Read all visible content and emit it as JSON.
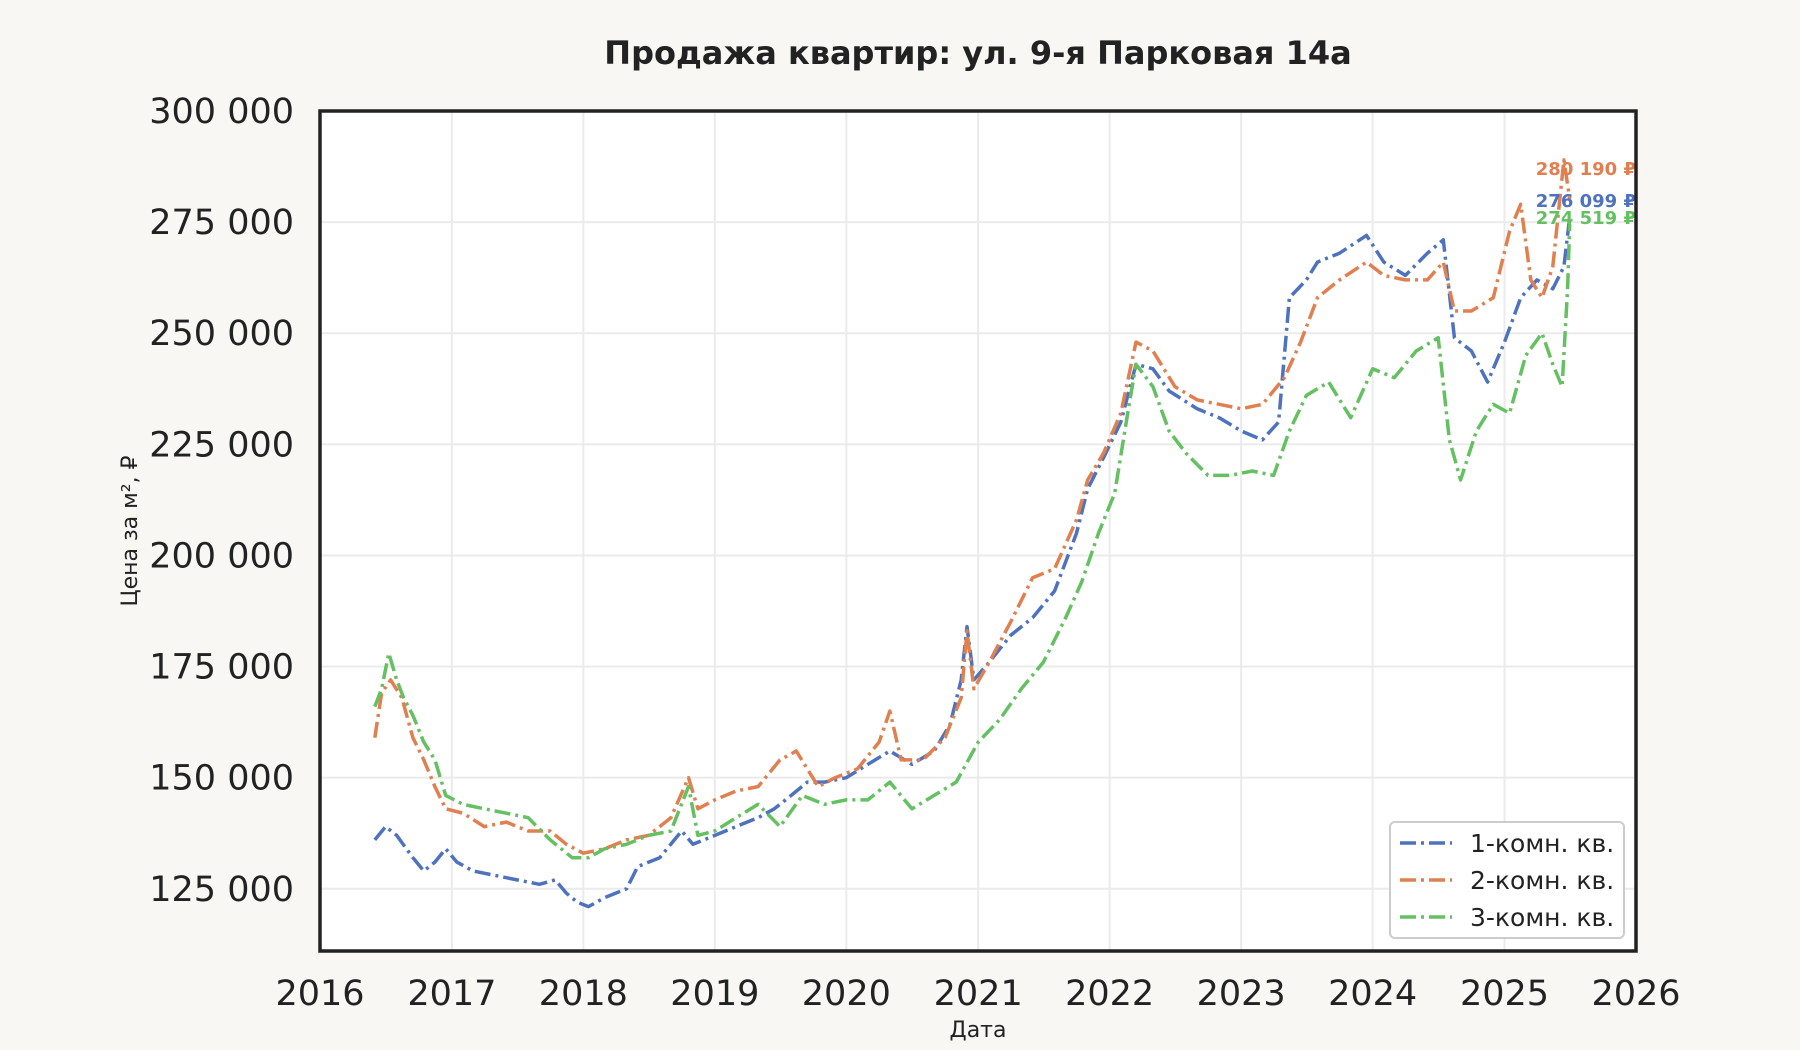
{
  "chart_data": {
    "type": "line",
    "title": "Продажа квартир: ул. 9-я Парковая 14а",
    "xlabel": "Дата",
    "ylabel": "Цена за м², ₽",
    "xlim": [
      "2016-01-01",
      "2026-01-01"
    ],
    "ylim": [
      111000,
      300000
    ],
    "x_ticks": [
      "2016",
      "2017",
      "2018",
      "2019",
      "2020",
      "2021",
      "2022",
      "2023",
      "2024",
      "2025",
      "2026"
    ],
    "y_ticks": [
      125000,
      150000,
      175000,
      200000,
      225000,
      250000,
      275000,
      300000
    ],
    "y_tick_labels": [
      "125 000",
      "150 000",
      "175 000",
      "200 000",
      "225 000",
      "250 000",
      "275 000",
      "300 000"
    ],
    "grid": true,
    "legend_position": "bottom-right",
    "series": [
      {
        "name": "1-комн. кв.",
        "color": "#4f72be",
        "end_label": "276 099 ₽",
        "points": [
          [
            "2016-06-01",
            136000
          ],
          [
            "2016-07-01",
            139000
          ],
          [
            "2016-08-01",
            137000
          ],
          [
            "2016-09-15",
            132000
          ],
          [
            "2016-10-15",
            129000
          ],
          [
            "2016-11-15",
            131000
          ],
          [
            "2016-12-15",
            134000
          ],
          [
            "2017-01-15",
            131000
          ],
          [
            "2017-03-01",
            129000
          ],
          [
            "2017-05-01",
            128000
          ],
          [
            "2017-07-01",
            127000
          ],
          [
            "2017-09-01",
            126000
          ],
          [
            "2017-10-15",
            127000
          ],
          [
            "2017-11-15",
            124000
          ],
          [
            "2017-12-15",
            122000
          ],
          [
            "2018-01-15",
            121000
          ],
          [
            "2018-03-01",
            123000
          ],
          [
            "2018-05-01",
            125000
          ],
          [
            "2018-06-01",
            130000
          ],
          [
            "2018-08-01",
            132000
          ],
          [
            "2018-10-01",
            138000
          ],
          [
            "2018-11-01",
            135000
          ],
          [
            "2019-01-01",
            137000
          ],
          [
            "2019-03-01",
            139000
          ],
          [
            "2019-05-01",
            141000
          ],
          [
            "2019-06-15",
            143000
          ],
          [
            "2019-08-01",
            146000
          ],
          [
            "2019-09-15",
            149000
          ],
          [
            "2019-11-01",
            149000
          ],
          [
            "2020-01-01",
            150000
          ],
          [
            "2020-03-01",
            153000
          ],
          [
            "2020-05-01",
            156000
          ],
          [
            "2020-07-01",
            153000
          ],
          [
            "2020-09-01",
            156000
          ],
          [
            "2020-10-15",
            162000
          ],
          [
            "2020-11-15",
            172000
          ],
          [
            "2020-12-01",
            184000
          ],
          [
            "2020-12-20",
            172000
          ],
          [
            "2021-02-01",
            176000
          ],
          [
            "2021-04-01",
            182000
          ],
          [
            "2021-06-01",
            186000
          ],
          [
            "2021-08-01",
            192000
          ],
          [
            "2021-10-01",
            205000
          ],
          [
            "2021-11-01",
            215000
          ],
          [
            "2021-12-15",
            222000
          ],
          [
            "2022-02-01",
            230000
          ],
          [
            "2022-03-15",
            243000
          ],
          [
            "2022-05-01",
            242000
          ],
          [
            "2022-06-15",
            237000
          ],
          [
            "2022-09-01",
            233000
          ],
          [
            "2022-11-01",
            231000
          ],
          [
            "2023-01-01",
            228000
          ],
          [
            "2023-03-01",
            226000
          ],
          [
            "2023-04-15",
            230000
          ],
          [
            "2023-05-15",
            258000
          ],
          [
            "2023-07-01",
            262000
          ],
          [
            "2023-08-01",
            266000
          ],
          [
            "2023-10-01",
            268000
          ],
          [
            "2023-12-15",
            272000
          ],
          [
            "2024-02-01",
            266000
          ],
          [
            "2024-04-01",
            263000
          ],
          [
            "2024-06-01",
            268000
          ],
          [
            "2024-07-15",
            271000
          ],
          [
            "2024-08-15",
            249000
          ],
          [
            "2024-10-01",
            246000
          ],
          [
            "2024-11-15",
            239000
          ],
          [
            "2025-01-01",
            248000
          ],
          [
            "2025-02-15",
            258000
          ],
          [
            "2025-04-01",
            262000
          ],
          [
            "2025-05-15",
            260000
          ],
          [
            "2025-06-15",
            265000
          ],
          [
            "2025-07-01",
            276099
          ]
        ]
      },
      {
        "name": "2-комн. кв.",
        "color": "#e08050",
        "end_label": "280 190 ₽",
        "points": [
          [
            "2016-06-01",
            159000
          ],
          [
            "2016-06-20",
            169000
          ],
          [
            "2016-07-15",
            172000
          ],
          [
            "2016-08-15",
            168000
          ],
          [
            "2016-09-15",
            159000
          ],
          [
            "2016-10-15",
            154000
          ],
          [
            "2016-11-15",
            148000
          ],
          [
            "2016-12-15",
            143000
          ],
          [
            "2017-02-01",
            142000
          ],
          [
            "2017-04-01",
            139000
          ],
          [
            "2017-06-01",
            140000
          ],
          [
            "2017-08-01",
            138000
          ],
          [
            "2017-10-01",
            138000
          ],
          [
            "2017-11-15",
            135000
          ],
          [
            "2018-01-01",
            133000
          ],
          [
            "2018-03-01",
            134000
          ],
          [
            "2018-05-01",
            136000
          ],
          [
            "2018-07-01",
            137000
          ],
          [
            "2018-09-01",
            141000
          ],
          [
            "2018-10-20",
            150000
          ],
          [
            "2018-11-15",
            143000
          ],
          [
            "2019-01-01",
            145000
          ],
          [
            "2019-03-01",
            147000
          ],
          [
            "2019-05-01",
            148000
          ],
          [
            "2019-07-01",
            154000
          ],
          [
            "2019-08-15",
            156000
          ],
          [
            "2019-10-15",
            148000
          ],
          [
            "2019-12-01",
            150000
          ],
          [
            "2020-02-01",
            152000
          ],
          [
            "2020-04-01",
            158000
          ],
          [
            "2020-05-01",
            165000
          ],
          [
            "2020-06-01",
            154000
          ],
          [
            "2020-08-01",
            154000
          ],
          [
            "2020-10-01",
            159000
          ],
          [
            "2020-11-15",
            168000
          ],
          [
            "2020-12-01",
            183000
          ],
          [
            "2020-12-20",
            170000
          ],
          [
            "2021-02-01",
            176000
          ],
          [
            "2021-04-01",
            185000
          ],
          [
            "2021-06-01",
            195000
          ],
          [
            "2021-08-01",
            197000
          ],
          [
            "2021-10-01",
            208000
          ],
          [
            "2021-11-01",
            217000
          ],
          [
            "2021-12-15",
            223000
          ],
          [
            "2022-02-01",
            232000
          ],
          [
            "2022-03-15",
            248000
          ],
          [
            "2022-05-01",
            246000
          ],
          [
            "2022-07-01",
            238000
          ],
          [
            "2022-09-01",
            235000
          ],
          [
            "2022-11-01",
            234000
          ],
          [
            "2023-01-01",
            233000
          ],
          [
            "2023-03-01",
            234000
          ],
          [
            "2023-05-01",
            240000
          ],
          [
            "2023-06-15",
            248000
          ],
          [
            "2023-08-01",
            258000
          ],
          [
            "2023-10-01",
            262000
          ],
          [
            "2023-12-15",
            266000
          ],
          [
            "2024-02-01",
            263000
          ],
          [
            "2024-04-01",
            262000
          ],
          [
            "2024-06-01",
            262000
          ],
          [
            "2024-07-15",
            266000
          ],
          [
            "2024-08-15",
            255000
          ],
          [
            "2024-10-01",
            255000
          ],
          [
            "2024-12-01",
            258000
          ],
          [
            "2025-01-15",
            273000
          ],
          [
            "2025-02-15",
            279000
          ],
          [
            "2025-03-15",
            262000
          ],
          [
            "2025-04-15",
            258000
          ],
          [
            "2025-05-15",
            265000
          ],
          [
            "2025-06-15",
            289000
          ],
          [
            "2025-07-01",
            280190
          ]
        ]
      },
      {
        "name": "3-комн. кв.",
        "color": "#64c060",
        "end_label": "274 519 ₽",
        "points": [
          [
            "2016-06-01",
            166000
          ],
          [
            "2016-06-20",
            170000
          ],
          [
            "2016-07-10",
            178000
          ],
          [
            "2016-08-01",
            172000
          ],
          [
            "2016-08-20",
            168000
          ],
          [
            "2016-09-15",
            164000
          ],
          [
            "2016-10-15",
            158000
          ],
          [
            "2016-11-15",
            154000
          ],
          [
            "2016-12-15",
            146000
          ],
          [
            "2017-02-01",
            144000
          ],
          [
            "2017-04-01",
            143000
          ],
          [
            "2017-06-01",
            142000
          ],
          [
            "2017-08-01",
            141000
          ],
          [
            "2017-10-01",
            136000
          ],
          [
            "2017-12-01",
            132000
          ],
          [
            "2018-01-15",
            132000
          ],
          [
            "2018-03-01",
            134000
          ],
          [
            "2018-05-01",
            135000
          ],
          [
            "2018-07-01",
            137000
          ],
          [
            "2018-09-01",
            138000
          ],
          [
            "2018-10-20",
            148000
          ],
          [
            "2018-11-15",
            137000
          ],
          [
            "2019-01-01",
            138000
          ],
          [
            "2019-03-01",
            141000
          ],
          [
            "2019-05-01",
            144000
          ],
          [
            "2019-07-01",
            139000
          ],
          [
            "2019-09-01",
            146000
          ],
          [
            "2019-11-01",
            144000
          ],
          [
            "2020-01-01",
            145000
          ],
          [
            "2020-03-01",
            145000
          ],
          [
            "2020-05-01",
            149000
          ],
          [
            "2020-07-01",
            143000
          ],
          [
            "2020-09-01",
            146000
          ],
          [
            "2020-11-01",
            149000
          ],
          [
            "2021-01-01",
            158000
          ],
          [
            "2021-03-01",
            163000
          ],
          [
            "2021-05-01",
            170000
          ],
          [
            "2021-07-01",
            176000
          ],
          [
            "2021-09-01",
            186000
          ],
          [
            "2021-10-15",
            194000
          ],
          [
            "2021-12-01",
            205000
          ],
          [
            "2022-01-15",
            214000
          ],
          [
            "2022-02-20",
            232000
          ],
          [
            "2022-03-15",
            243000
          ],
          [
            "2022-05-01",
            238000
          ],
          [
            "2022-06-15",
            228000
          ],
          [
            "2022-08-01",
            223000
          ],
          [
            "2022-10-01",
            218000
          ],
          [
            "2022-12-01",
            218000
          ],
          [
            "2023-02-01",
            219000
          ],
          [
            "2023-04-01",
            218000
          ],
          [
            "2023-05-15",
            228000
          ],
          [
            "2023-07-01",
            236000
          ],
          [
            "2023-09-01",
            239000
          ],
          [
            "2023-11-01",
            231000
          ],
          [
            "2024-01-01",
            242000
          ],
          [
            "2024-03-01",
            240000
          ],
          [
            "2024-05-01",
            246000
          ],
          [
            "2024-07-01",
            249000
          ],
          [
            "2024-08-01",
            226000
          ],
          [
            "2024-09-01",
            217000
          ],
          [
            "2024-10-15",
            228000
          ],
          [
            "2024-12-01",
            234000
          ],
          [
            "2025-01-15",
            232000
          ],
          [
            "2025-03-01",
            245000
          ],
          [
            "2025-04-15",
            250000
          ],
          [
            "2025-05-15",
            243000
          ],
          [
            "2025-06-10",
            238000
          ],
          [
            "2025-06-25",
            260000
          ],
          [
            "2025-07-01",
            274519
          ]
        ]
      }
    ]
  }
}
